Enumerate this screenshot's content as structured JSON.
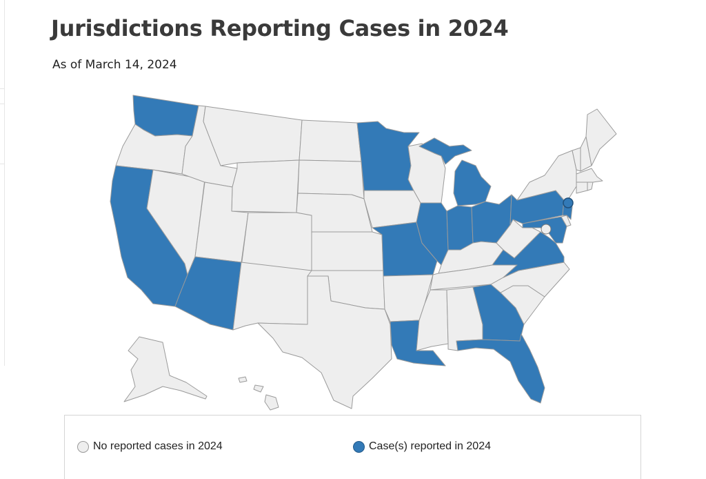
{
  "title": "Jurisdictions Reporting Cases in 2024",
  "subtitle": "As of March 14, 2024",
  "colors": {
    "no_cases": "#eeeeee",
    "cases": "#337ab7",
    "border": "#9a9a9a"
  },
  "legend": {
    "items": [
      {
        "label": "No reported cases in 2024",
        "color": "#eeeeee"
      },
      {
        "label": "Case(s) reported in 2024",
        "color": "#337ab7"
      }
    ]
  },
  "map": {
    "jurisdictions_with_cases": [
      "Washington",
      "California",
      "Arizona",
      "Minnesota",
      "Michigan",
      "Illinois",
      "Missouri",
      "Indiana",
      "Ohio",
      "Pennsylvania",
      "New Jersey",
      "Maryland",
      "Virginia",
      "Louisiana",
      "Georgia",
      "Florida"
    ],
    "jurisdictions_without_cases": [
      "Oregon",
      "Idaho",
      "Montana",
      "Wyoming",
      "Nevada",
      "Utah",
      "Colorado",
      "New Mexico",
      "North Dakota",
      "South Dakota",
      "Nebraska",
      "Kansas",
      "Oklahoma",
      "Texas",
      "Iowa",
      "Arkansas",
      "Wisconsin",
      "Kentucky",
      "Tennessee",
      "Mississippi",
      "Alabama",
      "West Virginia",
      "North Carolina",
      "South Carolina",
      "New York",
      "Vermont",
      "New Hampshire",
      "Maine",
      "Massachusetts",
      "Connecticut",
      "Rhode Island",
      "Delaware",
      "District of Columbia",
      "Alaska",
      "Hawaii"
    ]
  }
}
